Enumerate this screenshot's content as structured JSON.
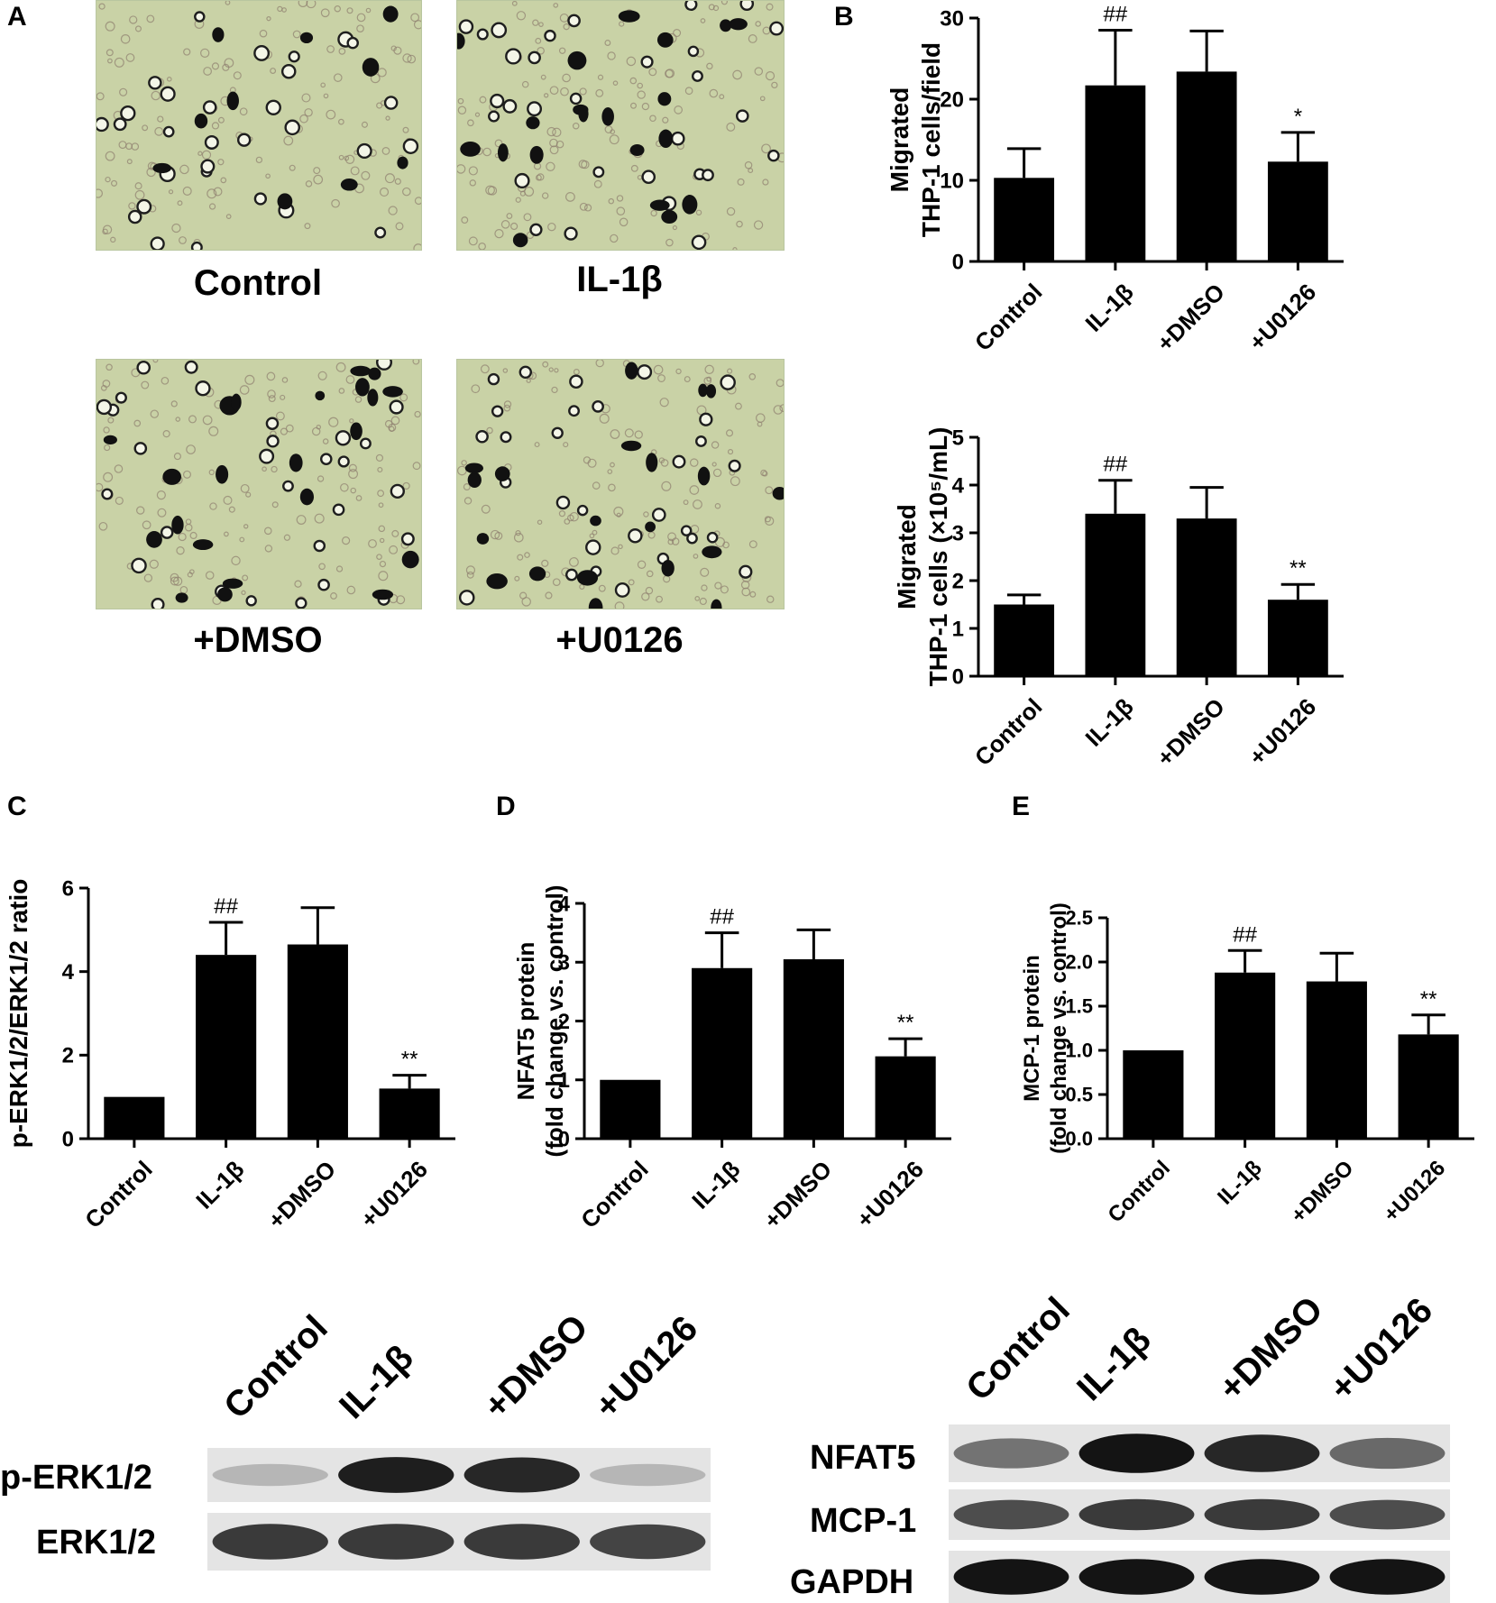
{
  "panels": {
    "A": "A",
    "B": "B",
    "C": "C",
    "D": "D",
    "E": "E"
  },
  "micrographs": {
    "labels": [
      "Control",
      "IL-1β",
      "+DMSO",
      "+U0126"
    ],
    "background": "#c9d2a6"
  },
  "colors": {
    "bar": "#000000",
    "axis": "#000000"
  },
  "chart_data": [
    {
      "id": "B1",
      "type": "bar",
      "categories": [
        "Control",
        "IL-1β",
        "+DMSO",
        "+U0126"
      ],
      "values": [
        10.3,
        21.7,
        23.4,
        12.3
      ],
      "errors": [
        3.6,
        6.8,
        5.0,
        3.6
      ],
      "annotations": [
        "",
        "##",
        "",
        "*"
      ],
      "ylim": [
        0,
        30
      ],
      "yticks": [
        0,
        10,
        20,
        30
      ],
      "ytick_labels": [
        "0",
        "10",
        "20",
        "30"
      ],
      "ylabel": [
        "Migrated",
        "THP-1 cells/field"
      ]
    },
    {
      "id": "B2",
      "type": "bar",
      "categories": [
        "Control",
        "IL-1β",
        "+DMSO",
        "+U0126"
      ],
      "values": [
        1.5,
        3.4,
        3.3,
        1.6
      ],
      "errors": [
        0.2,
        0.7,
        0.65,
        0.32
      ],
      "annotations": [
        "",
        "##",
        "",
        "**"
      ],
      "ylim": [
        0,
        5
      ],
      "yticks": [
        0,
        1,
        2,
        3,
        4,
        5
      ],
      "ytick_labels": [
        "0",
        "1",
        "2",
        "3",
        "4",
        "5"
      ],
      "ylabel": [
        "Migrated",
        "THP-1 cells (×10⁵/mL)"
      ]
    },
    {
      "id": "C",
      "type": "bar",
      "categories": [
        "Control",
        "IL-1β",
        "+DMSO",
        "+U0126"
      ],
      "values": [
        1.0,
        4.4,
        4.65,
        1.2
      ],
      "errors": [
        0,
        0.78,
        0.88,
        0.32
      ],
      "annotations": [
        "",
        "##",
        "",
        "**"
      ],
      "ylim": [
        0,
        6
      ],
      "yticks": [
        0,
        2,
        4,
        6
      ],
      "ytick_labels": [
        "0",
        "2",
        "4",
        "6"
      ],
      "ylabel": [
        "p-ERK1/2/ERK1/2 ratio"
      ]
    },
    {
      "id": "D",
      "type": "bar",
      "categories": [
        "Control",
        "IL-1β",
        "+DMSO",
        "+U0126"
      ],
      "values": [
        1.0,
        2.9,
        3.05,
        1.4
      ],
      "errors": [
        0,
        0.6,
        0.5,
        0.3
      ],
      "annotations": [
        "",
        "##",
        "",
        "**"
      ],
      "ylim": [
        0,
        4
      ],
      "yticks": [
        0,
        1,
        2,
        3,
        4
      ],
      "ytick_labels": [
        "0",
        "1",
        "2",
        "3",
        "4"
      ],
      "ylabel": [
        "NFAT5 protein",
        "(fold change vs. control)"
      ]
    },
    {
      "id": "E",
      "type": "bar",
      "categories": [
        "Control",
        "IL-1β",
        "+DMSO",
        "+U0126"
      ],
      "values": [
        1.0,
        1.88,
        1.78,
        1.18
      ],
      "errors": [
        0,
        0.25,
        0.32,
        0.22
      ],
      "annotations": [
        "",
        "##",
        "",
        "**"
      ],
      "ylim": [
        0,
        2.5
      ],
      "yticks": [
        0,
        0.5,
        1,
        1.5,
        2,
        2.5
      ],
      "ytick_labels": [
        "0.0",
        "0.5",
        "1.0",
        "1.5",
        "2.0",
        "2.5"
      ],
      "ylabel": [
        "MCP-1 protein",
        "(fold change vs. control)"
      ]
    }
  ],
  "blot_left": {
    "lanes": [
      "Control",
      "IL-1β",
      "+DMSO",
      "+U0126"
    ],
    "rows": [
      "p-ERK1/2",
      "ERK1/2"
    ]
  },
  "blot_right": {
    "lanes": [
      "Control",
      "IL-1β",
      "+DMSO",
      "+U0126"
    ],
    "rows": [
      "NFAT5",
      "MCP-1",
      "GAPDH"
    ]
  }
}
